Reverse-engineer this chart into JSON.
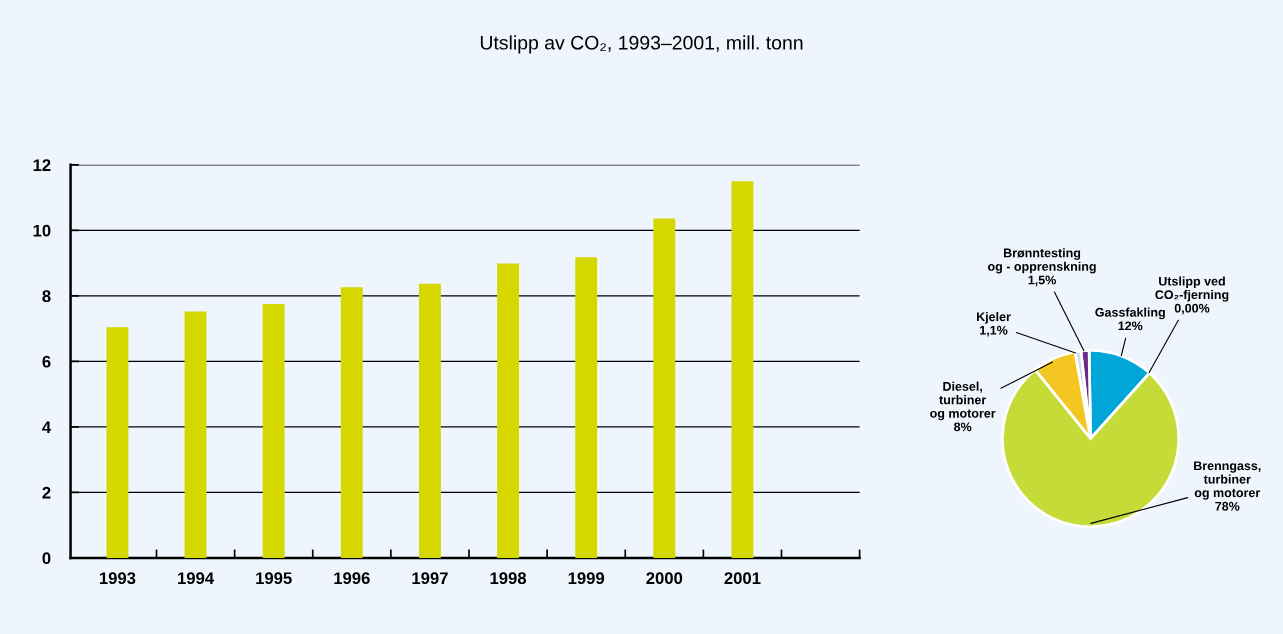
{
  "chart_data": [
    {
      "type": "bar",
      "title": "Utslipp av CO₂, 1993–2001, mill. tonn",
      "categories": [
        "1993",
        "1994",
        "1995",
        "1996",
        "1997",
        "1998",
        "1999",
        "2000",
        "2001"
      ],
      "values": [
        7.04,
        7.52,
        7.75,
        8.26,
        8.37,
        8.99,
        9.18,
        10.36,
        11.5
      ],
      "color": "#d4d800",
      "ylim": [
        0,
        12
      ],
      "yticks": [
        0,
        2,
        4,
        6,
        8,
        10,
        12
      ],
      "grid": "y",
      "legend": false
    },
    {
      "type": "pie",
      "categories": [
        "Utslipp ved\nCO₂-fjerning",
        "Gassfakling",
        "Brønntesting\nog - opprenskning",
        "Kjeler",
        "Diesel,\nturbiner\nog motorer",
        "Brenngass,\nturbiner\nog motorer"
      ],
      "values": [
        0.0,
        12,
        1.5,
        1.1,
        8,
        78
      ],
      "value_labels": [
        "0,00%",
        "12%",
        "1,5%",
        "1,1%",
        "8%",
        "78%"
      ],
      "colors": [
        "#ffffff",
        "#00a6d8",
        "#6b2a86",
        "#c9dcf0",
        "#f3c622",
        "#c5dc38"
      ]
    }
  ]
}
